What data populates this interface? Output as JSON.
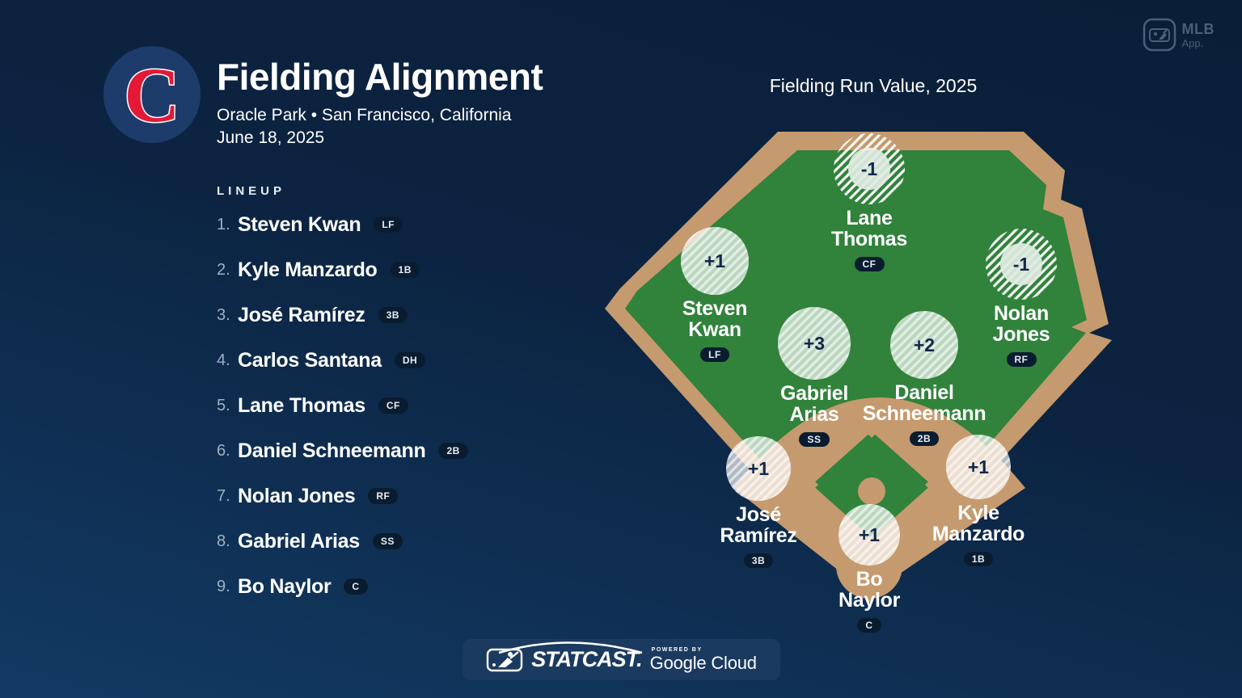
{
  "header": {
    "title": "Fielding Alignment",
    "venue_line": "Oracle Park • San Francisco, California",
    "date_line": "June 18, 2025",
    "team_logo_letter": "C"
  },
  "mlb_app": {
    "line1": "MLB",
    "line2": "App."
  },
  "lineup": {
    "label": "LINEUP",
    "players": [
      {
        "order": "1.",
        "name": "Steven Kwan",
        "position": "LF"
      },
      {
        "order": "2.",
        "name": "Kyle Manzardo",
        "position": "1B"
      },
      {
        "order": "3.",
        "name": "José Ramírez",
        "position": "3B"
      },
      {
        "order": "4.",
        "name": "Carlos Santana",
        "position": "DH"
      },
      {
        "order": "5.",
        "name": "Lane Thomas",
        "position": "CF"
      },
      {
        "order": "6.",
        "name": "Daniel Schneemann",
        "position": "2B"
      },
      {
        "order": "7.",
        "name": "Nolan Jones",
        "position": "RF"
      },
      {
        "order": "8.",
        "name": "Gabriel Arias",
        "position": "SS"
      },
      {
        "order": "9.",
        "name": "Bo Naylor",
        "position": "C"
      }
    ]
  },
  "field": {
    "title": "Fielding Run Value, 2025",
    "fielders": [
      {
        "position": "LF",
        "name_line1": "Steven",
        "name_line2": "Kwan",
        "value": "+1"
      },
      {
        "position": "CF",
        "name_line1": "Lane",
        "name_line2": "Thomas",
        "value": "-1"
      },
      {
        "position": "RF",
        "name_line1": "Nolan",
        "name_line2": "Jones",
        "value": "-1"
      },
      {
        "position": "SS",
        "name_line1": "Gabriel",
        "name_line2": "Arias",
        "value": "+3"
      },
      {
        "position": "2B",
        "name_line1": "Daniel",
        "name_line2": "Schneemann",
        "value": "+2"
      },
      {
        "position": "3B",
        "name_line1": "José",
        "name_line2": "Ramírez",
        "value": "+1"
      },
      {
        "position": "1B",
        "name_line1": "Kyle",
        "name_line2": "Manzardo",
        "value": "+1"
      },
      {
        "position": "C",
        "name_line1": "Bo",
        "name_line2": "Naylor",
        "value": "+1"
      }
    ]
  },
  "footer": {
    "statcast": "STATCAST.",
    "powered_by": "POWERED BY",
    "google_cloud": "Google Cloud"
  },
  "colors": {
    "background_top": "#0a1e37",
    "background_bottom": "#123a63",
    "field_green": "#31823b",
    "dirt_tan": "#c59a6e",
    "badge_navy": "#0a1c30",
    "value_navy": "#12284b",
    "logo_circle_blue": "#1d3c6b",
    "logo_red": "#e31937",
    "statcast_bar": "#1b3a60",
    "marker_fill": "#ffffff"
  },
  "chart_data": {
    "type": "scatter",
    "title": "Fielding Run Value, 2025",
    "subtitle": "Fielding Alignment — Oracle Park • San Francisco, California — June 18, 2025",
    "legend_position": "none",
    "series": [
      {
        "name": "Fielding Run Value 2025",
        "points": [
          {
            "player": "Steven Kwan",
            "position": "LF",
            "fielding_run_value": 1,
            "lineup_order": 1
          },
          {
            "player": "Kyle Manzardo",
            "position": "1B",
            "fielding_run_value": 1,
            "lineup_order": 2
          },
          {
            "player": "José Ramírez",
            "position": "3B",
            "fielding_run_value": 1,
            "lineup_order": 3
          },
          {
            "player": "Carlos Santana",
            "position": "DH",
            "fielding_run_value": null,
            "lineup_order": 4
          },
          {
            "player": "Lane Thomas",
            "position": "CF",
            "fielding_run_value": -1,
            "lineup_order": 5
          },
          {
            "player": "Daniel Schneemann",
            "position": "2B",
            "fielding_run_value": 2,
            "lineup_order": 6
          },
          {
            "player": "Nolan Jones",
            "position": "RF",
            "fielding_run_value": -1,
            "lineup_order": 7
          },
          {
            "player": "Gabriel Arias",
            "position": "SS",
            "fielding_run_value": 3,
            "lineup_order": 8
          },
          {
            "player": "Bo Naylor",
            "position": "C",
            "fielding_run_value": 1,
            "lineup_order": 9
          }
        ]
      }
    ]
  }
}
